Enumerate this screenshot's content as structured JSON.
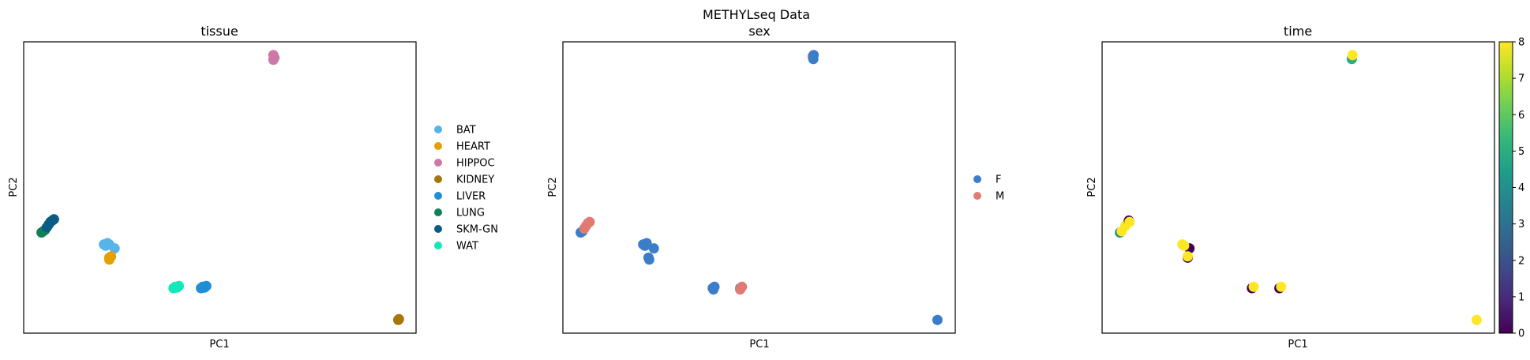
{
  "suptitle": "METHYLseq Data",
  "chart_data": [
    {
      "type": "scatter",
      "title": "tissue",
      "xlabel": "PC1",
      "ylabel": "PC2",
      "legend_position": "right",
      "xlim": [
        -0.05,
        1.05
      ],
      "ylim": [
        -0.05,
        1.05
      ],
      "legend": [
        {
          "label": "BAT",
          "color": "#56B4E9"
        },
        {
          "label": "HEART",
          "color": "#E69F00"
        },
        {
          "label": "HIPPOC",
          "color": "#CC79A7"
        },
        {
          "label": "KIDNEY",
          "color": "#A6760D"
        },
        {
          "label": "LIVER",
          "color": "#1F8FD6"
        },
        {
          "label": "LUNG",
          "color": "#117F5A"
        },
        {
          "label": "SKM-GN",
          "color": "#0A5C86"
        },
        {
          "label": "WAT",
          "color": "#14E8B8"
        }
      ],
      "points": [
        {
          "x": 0.0,
          "y": 0.33,
          "cat": "LUNG"
        },
        {
          "x": 0.005,
          "y": 0.335,
          "cat": "LUNG"
        },
        {
          "x": 0.01,
          "y": 0.34,
          "cat": "LUNG"
        },
        {
          "x": 0.015,
          "y": 0.35,
          "cat": "SKM-GN"
        },
        {
          "x": 0.02,
          "y": 0.36,
          "cat": "SKM-GN"
        },
        {
          "x": 0.025,
          "y": 0.37,
          "cat": "SKM-GN"
        },
        {
          "x": 0.03,
          "y": 0.375,
          "cat": "SKM-GN"
        },
        {
          "x": 0.035,
          "y": 0.38,
          "cat": "SKM-GN"
        },
        {
          "x": 0.175,
          "y": 0.285,
          "cat": "BAT"
        },
        {
          "x": 0.18,
          "y": 0.28,
          "cat": "BAT"
        },
        {
          "x": 0.185,
          "y": 0.29,
          "cat": "BAT"
        },
        {
          "x": 0.19,
          "y": 0.285,
          "cat": "BAT"
        },
        {
          "x": 0.205,
          "y": 0.27,
          "cat": "BAT"
        },
        {
          "x": 0.19,
          "y": 0.235,
          "cat": "HEART"
        },
        {
          "x": 0.195,
          "y": 0.24,
          "cat": "HEART"
        },
        {
          "x": 0.19,
          "y": 0.228,
          "cat": "HEART"
        },
        {
          "x": 0.37,
          "y": 0.12,
          "cat": "WAT"
        },
        {
          "x": 0.375,
          "y": 0.125,
          "cat": "WAT"
        },
        {
          "x": 0.38,
          "y": 0.122,
          "cat": "WAT"
        },
        {
          "x": 0.385,
          "y": 0.128,
          "cat": "WAT"
        },
        {
          "x": 0.447,
          "y": 0.12,
          "cat": "LIVER"
        },
        {
          "x": 0.452,
          "y": 0.125,
          "cat": "LIVER"
        },
        {
          "x": 0.457,
          "y": 0.122,
          "cat": "LIVER"
        },
        {
          "x": 0.462,
          "y": 0.128,
          "cat": "LIVER"
        },
        {
          "x": 0.65,
          "y": 1.0,
          "cat": "HIPPOC"
        },
        {
          "x": 0.653,
          "y": 0.99,
          "cat": "HIPPOC"
        },
        {
          "x": 0.65,
          "y": 0.982,
          "cat": "HIPPOC"
        },
        {
          "x": 1.0,
          "y": 0.0,
          "cat": "KIDNEY"
        },
        {
          "x": 1.002,
          "y": 0.003,
          "cat": "KIDNEY"
        }
      ]
    },
    {
      "type": "scatter",
      "title": "sex",
      "xlabel": "PC1",
      "ylabel": "PC2",
      "legend_position": "right",
      "xlim": [
        -0.05,
        1.05
      ],
      "ylim": [
        -0.05,
        1.05
      ],
      "legend": [
        {
          "label": "F",
          "color": "#3A7DC9"
        },
        {
          "label": "M",
          "color": "#E07B73"
        }
      ],
      "points": [
        {
          "x": 0.0,
          "y": 0.33,
          "cat": "F"
        },
        {
          "x": 0.005,
          "y": 0.335,
          "cat": "F"
        },
        {
          "x": 0.01,
          "y": 0.345,
          "cat": "M"
        },
        {
          "x": 0.015,
          "y": 0.355,
          "cat": "M"
        },
        {
          "x": 0.02,
          "y": 0.365,
          "cat": "M"
        },
        {
          "x": 0.025,
          "y": 0.37,
          "cat": "M"
        },
        {
          "x": 0.175,
          "y": 0.285,
          "cat": "F"
        },
        {
          "x": 0.18,
          "y": 0.28,
          "cat": "F"
        },
        {
          "x": 0.185,
          "y": 0.29,
          "cat": "F"
        },
        {
          "x": 0.205,
          "y": 0.27,
          "cat": "F"
        },
        {
          "x": 0.19,
          "y": 0.235,
          "cat": "F"
        },
        {
          "x": 0.192,
          "y": 0.228,
          "cat": "F"
        },
        {
          "x": 0.37,
          "y": 0.12,
          "cat": "F"
        },
        {
          "x": 0.375,
          "y": 0.125,
          "cat": "F"
        },
        {
          "x": 0.372,
          "y": 0.115,
          "cat": "F"
        },
        {
          "x": 0.447,
          "y": 0.12,
          "cat": "F"
        },
        {
          "x": 0.452,
          "y": 0.125,
          "cat": "M"
        },
        {
          "x": 0.447,
          "y": 0.115,
          "cat": "M"
        },
        {
          "x": 0.65,
          "y": 0.995,
          "cat": "M"
        },
        {
          "x": 0.652,
          "y": 0.985,
          "cat": "F"
        },
        {
          "x": 0.653,
          "y": 1.0,
          "cat": "F"
        },
        {
          "x": 1.0,
          "y": 0.0,
          "cat": "F"
        }
      ]
    },
    {
      "type": "scatter",
      "title": "time",
      "xlabel": "PC1",
      "ylabel": "PC2",
      "colorbar": {
        "min": 0,
        "max": 8,
        "ticks": [
          "0",
          "1",
          "2",
          "3",
          "4",
          "5",
          "6",
          "7",
          "8"
        ],
        "colormap": "viridis",
        "stops": [
          "#440154",
          "#482878",
          "#3E4A89",
          "#31688E",
          "#26828E",
          "#1F9E89",
          "#35B779",
          "#6DCD59",
          "#B4DE2C",
          "#FDE725"
        ]
      },
      "xlim": [
        -0.05,
        1.05
      ],
      "ylim": [
        -0.05,
        1.05
      ],
      "points": [
        {
          "x": 0.0,
          "y": 0.33,
          "v": 4
        },
        {
          "x": 0.005,
          "y": 0.335,
          "v": 8
        },
        {
          "x": 0.015,
          "y": 0.355,
          "v": 8
        },
        {
          "x": 0.02,
          "y": 0.365,
          "v": 8
        },
        {
          "x": 0.025,
          "y": 0.375,
          "v": 0
        },
        {
          "x": 0.027,
          "y": 0.37,
          "v": 8
        },
        {
          "x": 0.195,
          "y": 0.27,
          "v": 0
        },
        {
          "x": 0.175,
          "y": 0.285,
          "v": 8
        },
        {
          "x": 0.18,
          "y": 0.28,
          "v": 8
        },
        {
          "x": 0.19,
          "y": 0.235,
          "v": 0
        },
        {
          "x": 0.19,
          "y": 0.24,
          "v": 8
        },
        {
          "x": 0.37,
          "y": 0.12,
          "v": 0
        },
        {
          "x": 0.375,
          "y": 0.125,
          "v": 8
        },
        {
          "x": 0.447,
          "y": 0.12,
          "v": 0
        },
        {
          "x": 0.452,
          "y": 0.125,
          "v": 8
        },
        {
          "x": 0.65,
          "y": 0.985,
          "v": 5
        },
        {
          "x": 0.652,
          "y": 1.0,
          "v": 8
        },
        {
          "x": 1.0,
          "y": 0.0,
          "v": 8
        }
      ]
    }
  ]
}
